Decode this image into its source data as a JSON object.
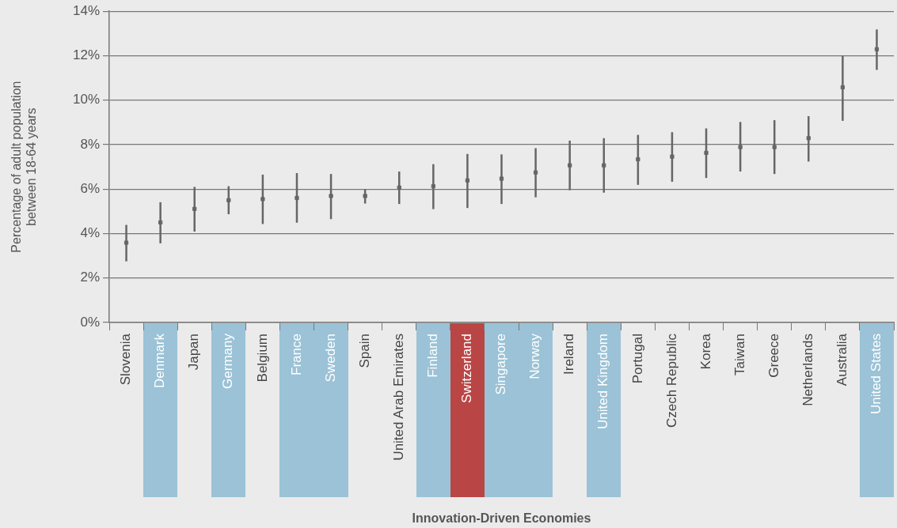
{
  "chart_data": {
    "type": "scatter",
    "xlabel": "Innovation-Driven Economies",
    "ylabel": "Percentage of adult population\nbetween 18-64 years",
    "categories": [
      "Slovenia",
      "Denmark",
      "Japan",
      "Germany",
      "Belgium",
      "France",
      "Sweden",
      "Spain",
      "United Arab Emirates",
      "Finland",
      "Switzerland",
      "Singapore",
      "Norway",
      "Ireland",
      "United Kingdom",
      "Portugal",
      "Czech Republic",
      "Korea",
      "Taiwan",
      "Greece",
      "Netherlands",
      "Australia",
      "United States"
    ],
    "series": [
      {
        "color": "#666666",
        "values": [
          3.59,
          4.5,
          5.11,
          5.5,
          5.55,
          5.6,
          5.69,
          5.69,
          6.07,
          6.13,
          6.39,
          6.47,
          6.75,
          7.07,
          7.07,
          7.34,
          7.46,
          7.63,
          7.89,
          7.89,
          8.29,
          10.58,
          12.29
        ],
        "errors": [
          [
            2.75,
            4.39
          ],
          [
            3.56,
            5.41
          ],
          [
            4.09,
            6.1
          ],
          [
            4.87,
            6.13
          ],
          [
            4.43,
            6.65
          ],
          [
            4.49,
            6.72
          ],
          [
            4.65,
            6.68
          ],
          [
            5.35,
            5.99
          ],
          [
            5.33,
            6.79
          ],
          [
            5.1,
            7.12
          ],
          [
            5.15,
            7.58
          ],
          [
            5.33,
            7.56
          ],
          [
            5.63,
            7.84
          ],
          [
            5.95,
            8.18
          ],
          [
            5.84,
            8.29
          ],
          [
            6.19,
            8.44
          ],
          [
            6.33,
            8.56
          ],
          [
            6.5,
            8.73
          ],
          [
            6.79,
            9.02
          ],
          [
            6.68,
            9.1
          ],
          [
            7.24,
            9.28
          ],
          [
            9.07,
            11.99
          ],
          [
            11.36,
            13.18
          ]
        ]
      }
    ],
    "ylim": [
      0,
      14
    ],
    "yticks": [
      {
        "value": 0,
        "label": "0%"
      },
      {
        "value": 2,
        "label": "2%"
      },
      {
        "value": 4,
        "label": "4%"
      },
      {
        "value": 6,
        "label": "6%"
      },
      {
        "value": 8,
        "label": "8%"
      },
      {
        "value": 10,
        "label": "10%"
      },
      {
        "value": 12,
        "label": "12%"
      },
      {
        "value": 14,
        "label": "14%"
      }
    ],
    "grid": "y",
    "marker": "square"
  }
}
